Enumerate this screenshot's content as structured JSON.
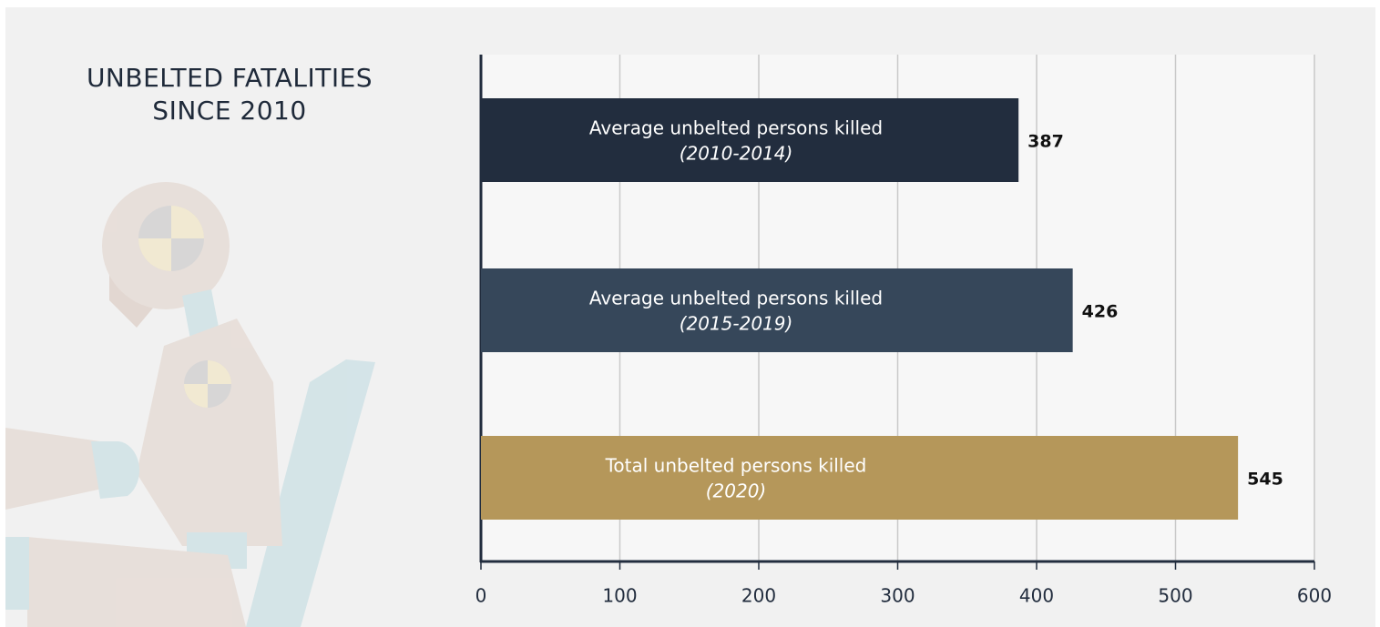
{
  "chart_data": {
    "type": "hbar",
    "title": "UNBELTED FATALITIES SINCE 2010",
    "categories": [
      "Average unbelted persons killed",
      "Average unbelted persons killed",
      "Total unbelted persons killed"
    ],
    "category_periods": [
      "(2010-2014)",
      "(2015-2019)",
      "(2020)"
    ],
    "values": [
      387,
      426,
      545
    ],
    "colors": [
      "#222d3e",
      "#36475a",
      "#b5975a"
    ],
    "xlim": [
      0,
      600
    ],
    "xticks": [
      0,
      100,
      200,
      300,
      400,
      500,
      600
    ],
    "grid": true
  }
}
